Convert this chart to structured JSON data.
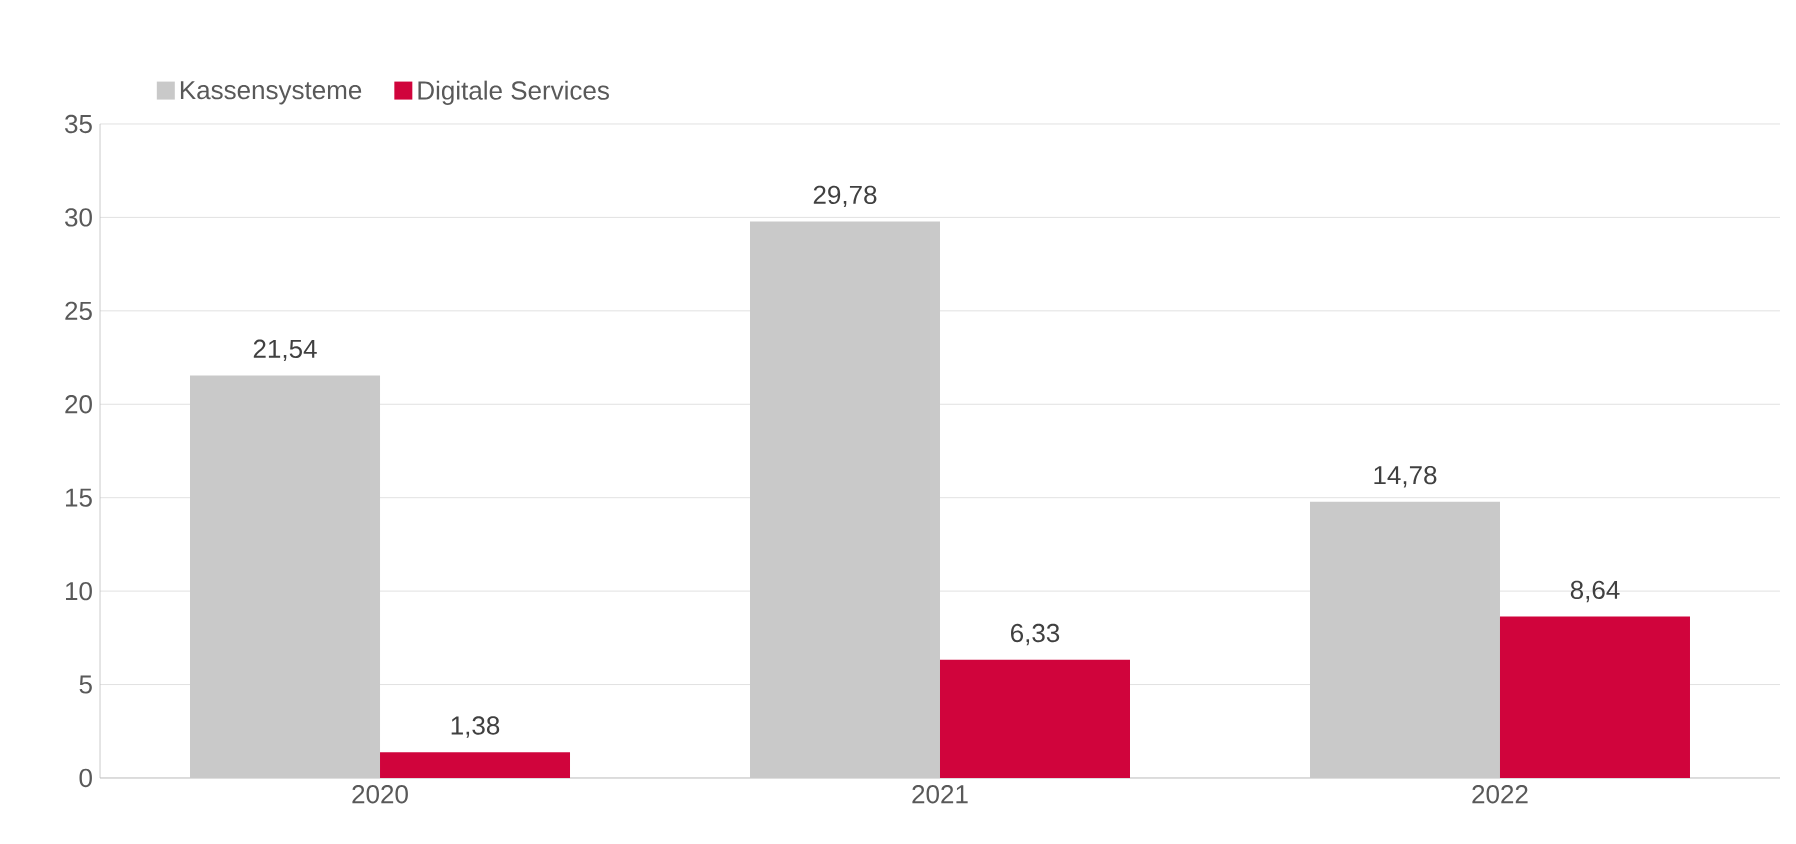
{
  "chart_data": {
    "type": "bar",
    "categories": [
      "2020",
      "2021",
      "2022"
    ],
    "series": [
      {
        "name": "Kassensysteme",
        "color": "#c9c9c9",
        "values": [
          21.54,
          29.78,
          14.78
        ],
        "value_labels": [
          "21,54",
          "29,78",
          "14,78"
        ]
      },
      {
        "name": "Digitale Services",
        "color": "#d0043c",
        "values": [
          1.38,
          6.33,
          8.64
        ],
        "value_labels": [
          "1,38",
          "6,33",
          "8,64"
        ]
      }
    ],
    "ylim": [
      0,
      35
    ],
    "yticks": [
      0,
      5,
      10,
      15,
      20,
      25,
      30,
      35
    ],
    "grid": "y",
    "legend": "top left"
  }
}
